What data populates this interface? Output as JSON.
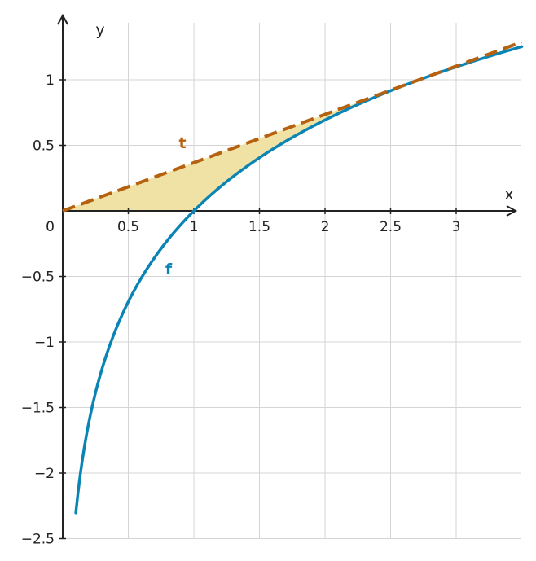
{
  "chart_data": {
    "type": "line",
    "title": "",
    "xlabel": "x",
    "ylabel": "y",
    "xlim": [
      0,
      3.5
    ],
    "ylim": [
      -2.5,
      1.4
    ],
    "grid": true,
    "x_ticks": [
      0.5,
      1,
      1.5,
      2,
      2.5,
      3
    ],
    "x_tick_labels": [
      "0.5",
      "1",
      "1.5",
      "2",
      "2.5",
      "3"
    ],
    "y_ticks": [
      1,
      0.5,
      -0.5,
      -1,
      -1.5,
      -2,
      -2.5
    ],
    "y_tick_labels": [
      "1",
      "0.5",
      "−0.5",
      "−1",
      "−1.5",
      "−2",
      "−2.5"
    ],
    "origin_label": "0",
    "series": [
      {
        "name": "f",
        "style": "solid",
        "color": "#0a84b4",
        "x": [
          0.1,
          0.15,
          0.2,
          0.3,
          0.4,
          0.5,
          0.6,
          0.7,
          0.8,
          0.9,
          1.0,
          1.25,
          1.5,
          1.75,
          2.0,
          2.25,
          2.5,
          2.75,
          3.0,
          3.25,
          3.5
        ],
        "y": [
          -2.303,
          -1.897,
          -1.609,
          -1.204,
          -0.916,
          -0.693,
          -0.511,
          -0.357,
          -0.223,
          -0.105,
          0.0,
          0.223,
          0.405,
          0.56,
          0.693,
          0.811,
          0.916,
          1.012,
          1.099,
          1.179,
          1.253
        ]
      },
      {
        "name": "t",
        "style": "dashed",
        "color": "#b5610f",
        "x": [
          0.0,
          3.5
        ],
        "y": [
          0.0,
          1.288
        ]
      }
    ],
    "shaded_region": {
      "between": [
        "t",
        "f"
      ],
      "x_range": [
        0.0,
        2.718
      ],
      "color": "#f0e2a4"
    }
  }
}
